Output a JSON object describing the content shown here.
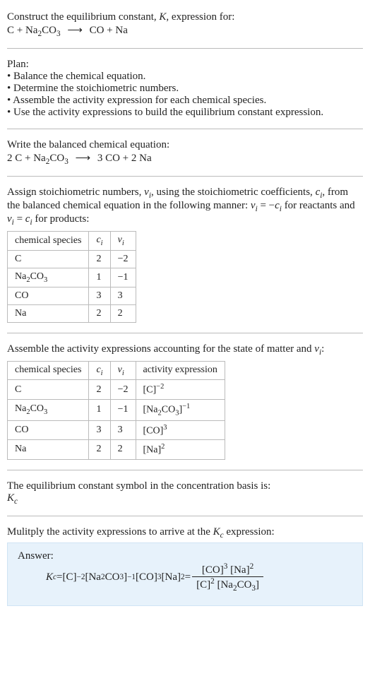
{
  "intro": {
    "line1": "Construct the equilibrium constant, ",
    "K": "K",
    "line1b": ", expression for:",
    "eq_lhs": "C + Na",
    "eq_sub1": "2",
    "eq_mid": "CO",
    "eq_sub2": "3",
    "eq_rhs1": "CO + Na"
  },
  "plan": {
    "heading": "Plan:",
    "b1": "• Balance the chemical equation.",
    "b2": "• Determine the stoichiometric numbers.",
    "b3": "• Assemble the activity expression for each chemical species.",
    "b4": "• Use the activity expressions to build the equilibrium constant expression."
  },
  "balanced": {
    "heading": "Write the balanced chemical equation:",
    "lhs1": "2 C + Na",
    "sub1": "2",
    "lhs2": "CO",
    "sub2": "3",
    "rhs": "3 CO + 2 Na"
  },
  "stoich": {
    "text1": "Assign stoichiometric numbers, ",
    "nu": "ν",
    "isym": "i",
    "text2": ", using the stoichiometric coefficients, ",
    "c": "c",
    "text3": ", from the balanced chemical equation in the following manner: ",
    "eq1a": "ν",
    "eq1b": " = −",
    "eq1c": "c",
    "text4": " for reactants and ",
    "eq2a": "ν",
    "eq2b": " = ",
    "eq2c": "c",
    "text5": " for products:",
    "th0": "chemical species",
    "th1": "c",
    "th2": "ν",
    "rows": [
      {
        "sp": "C",
        "spSub": "",
        "c": "2",
        "v": "−2"
      },
      {
        "sp": "Na",
        "spSub": "2",
        "sp2": "CO",
        "spSub2": "3",
        "c": "1",
        "v": "−1"
      },
      {
        "sp": "CO",
        "spSub": "",
        "c": "3",
        "v": "3"
      },
      {
        "sp": "Na",
        "spSub": "",
        "c": "2",
        "v": "2"
      }
    ]
  },
  "activity": {
    "heading": "Assemble the activity expressions accounting for the state of matter and ",
    "nu": "ν",
    "isym": "i",
    "colon": ":",
    "th0": "chemical species",
    "th1": "c",
    "th2": "ν",
    "th3": "activity expression",
    "rows": [
      {
        "sp": "C",
        "c": "2",
        "v": "−2",
        "ax": "[C]",
        "exp": "−2"
      },
      {
        "sp": "Na",
        "sub1": "2",
        "sp2": "CO",
        "sub2": "3",
        "c": "1",
        "v": "−1",
        "ax": "[Na",
        "axs1": "2",
        "ax2": "CO",
        "axs2": "3",
        "ax3": "]",
        "exp": "−1"
      },
      {
        "sp": "CO",
        "c": "3",
        "v": "3",
        "ax": "[CO]",
        "exp": "3"
      },
      {
        "sp": "Na",
        "c": "2",
        "v": "2",
        "ax": "[Na]",
        "exp": "2"
      }
    ]
  },
  "kconc": {
    "line": "The equilibrium constant symbol in the concentration basis is:",
    "K": "K",
    "csub": "c"
  },
  "mult": {
    "line1": "Mulitply the activity expressions to arrive at the ",
    "K": "K",
    "csub": "c",
    "line2": " expression:"
  },
  "answer": {
    "label": "Answer:",
    "K": "K",
    "csub": "c",
    "eq": " = ",
    "t1": "[C]",
    "e1": "−2",
    "t2": " [Na",
    "s2a": "2",
    "t2b": "CO",
    "s2b": "3",
    "t2c": "]",
    "e2": "−1",
    "t3": " [CO]",
    "e3": "3",
    "t4": " [Na]",
    "e4": "2",
    "eq2": " = ",
    "num1": "[CO]",
    "ne1": "3",
    "num2": " [Na]",
    "ne2": "2",
    "den1": "[C]",
    "de1": "2",
    "den2": " [Na",
    "ds2a": "2",
    "den2b": "CO",
    "ds2b": "3",
    "den2c": "]"
  }
}
